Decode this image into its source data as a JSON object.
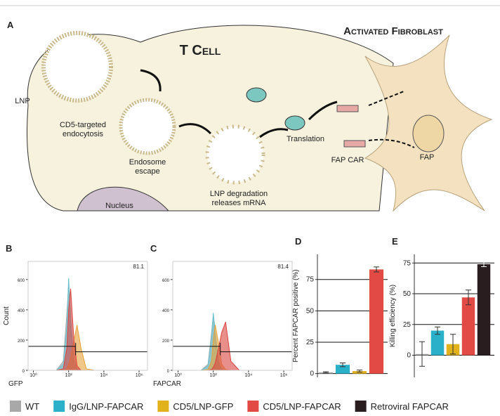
{
  "diagram": {
    "panel": "A",
    "cell": "T Cell",
    "fibroblast": "Activated Fibroblast",
    "lnp": "LNP",
    "endocytosis": "CD5-targeted endocytosis",
    "endosome": "Endosome escape",
    "degradation": "LNP degradation releases mRNA",
    "translation": "Translation",
    "fapcar": "FAP CAR",
    "fap": "FAP",
    "nucleus": "Nucleus"
  },
  "chart_data": [
    {
      "type": "histogram",
      "panel": "B",
      "xlabel": "GFP",
      "ylabel": "Count",
      "log_x": true,
      "x": [
        20,
        50,
        80,
        100,
        130,
        200,
        300,
        500,
        1000,
        3000
      ],
      "series": [
        {
          "color": "#a8a8a8",
          "values": [
            0,
            60,
            380,
            570,
            280,
            50,
            5,
            0,
            0,
            0
          ]
        },
        {
          "color": "#6cc3d0",
          "values": [
            0,
            40,
            300,
            610,
            350,
            70,
            10,
            0,
            0,
            0
          ]
        },
        {
          "color": "#e8a23a",
          "values": [
            0,
            0,
            10,
            40,
            80,
            200,
            300,
            150,
            10,
            0
          ]
        },
        {
          "color": "#d9443f",
          "values": [
            0,
            10,
            150,
            400,
            540,
            200,
            30,
            0,
            0,
            0
          ]
        }
      ],
      "gate": {
        "x": 250,
        "label": "81.1"
      },
      "xlim": [
        0.5,
        3000000
      ],
      "xticks": [
        {
          "value": 1,
          "label": "10⁰"
        },
        {
          "value": 100,
          "label": "10²"
        },
        {
          "value": 10000,
          "label": "10⁴"
        },
        {
          "value": 1000000,
          "label": "10⁶"
        }
      ],
      "ylim": [
        0,
        720
      ],
      "yticks": [
        0,
        200,
        400,
        600
      ]
    },
    {
      "type": "histogram",
      "panel": "C",
      "xlabel": "FAPCAR",
      "log_x": true,
      "x": [
        20,
        50,
        80,
        100,
        130,
        200,
        300,
        500,
        1000,
        3000
      ],
      "series": [
        {
          "color": "#a8a8a8",
          "values": [
            0,
            40,
            250,
            360,
            200,
            40,
            5,
            0,
            0,
            0
          ]
        },
        {
          "color": "#6cc3d0",
          "values": [
            0,
            30,
            220,
            380,
            250,
            60,
            8,
            0,
            0,
            0
          ]
        },
        {
          "color": "#e8a23a",
          "values": [
            0,
            5,
            60,
            200,
            300,
            180,
            40,
            5,
            0,
            0
          ]
        },
        {
          "color": "#d9443f",
          "values": [
            0,
            0,
            5,
            20,
            50,
            150,
            250,
            320,
            60,
            0
          ]
        }
      ],
      "gate": {
        "x": 250,
        "label": "81.4"
      },
      "xlim": [
        0.5,
        3000000
      ],
      "xticks": [
        {
          "value": 1,
          "label": "10⁰"
        },
        {
          "value": 100,
          "label": "10²"
        },
        {
          "value": 10000,
          "label": "10⁴"
        },
        {
          "value": 1000000,
          "label": "10⁶"
        }
      ],
      "ylim": [
        0,
        720
      ],
      "yticks": [
        0,
        200,
        400,
        600
      ]
    },
    {
      "type": "bar",
      "panel": "D",
      "ylabel": "Percent FAPCAR positive (%)",
      "categories": [
        null,
        null,
        null,
        null
      ],
      "values": [
        1,
        7,
        2,
        83
      ],
      "errors": [
        0.5,
        1.5,
        0.8,
        2
      ],
      "colors": [
        "#a8a8a8",
        "#2ab0c8",
        "#e2b21c",
        "#e24a45"
      ],
      "ylim": [
        -3,
        95
      ],
      "yticks": [
        0,
        25,
        50,
        75
      ],
      "grid": true
    },
    {
      "type": "bar",
      "panel": "E",
      "ylabel": "Killing efficiency (%)",
      "categories": [
        null,
        null,
        null,
        null,
        null
      ],
      "values": [
        1,
        20,
        9,
        47,
        74
      ],
      "errors": [
        10,
        3,
        8,
        6,
        2
      ],
      "colors": [
        "#a8a8a8",
        "#2ab0c8",
        "#e2b21c",
        "#e24a45",
        "#2a1d20"
      ],
      "ylim": [
        -18,
        82
      ],
      "yticks": [
        0,
        25,
        50,
        75
      ],
      "grid": true
    }
  ],
  "legend": [
    {
      "name": "WT",
      "color": "#a8a8a8"
    },
    {
      "name": "IgG/LNP-FAPCAR",
      "color": "#2ab0c8"
    },
    {
      "name": "CD5/LNP-GFP",
      "color": "#e2b21c"
    },
    {
      "name": "CD5/LNP-FAPCAR",
      "color": "#e24a45"
    },
    {
      "name": "Retroviral FAPCAR",
      "color": "#2a1d20"
    }
  ]
}
